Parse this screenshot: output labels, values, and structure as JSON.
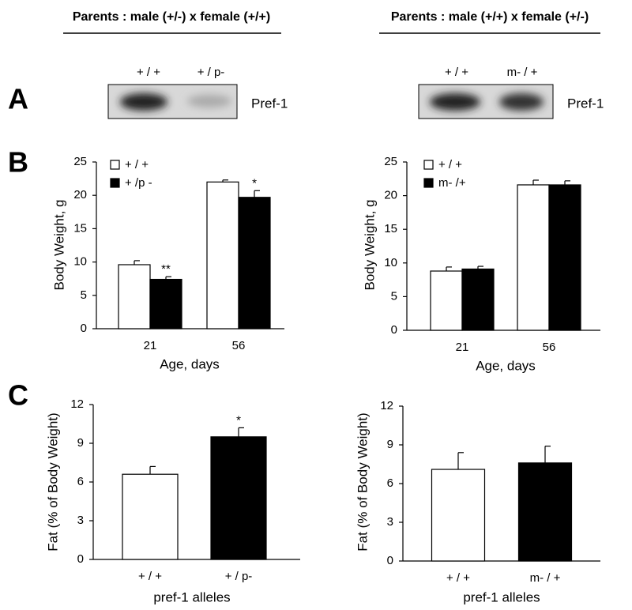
{
  "headers": [
    "Parents : male (+/-) x female (+/+)",
    "Parents : male (+/+) x female (+/-)"
  ],
  "panel_letters": [
    "A",
    "B",
    "C"
  ],
  "blots": [
    {
      "lanes": [
        "+ / +",
        "+ / p-"
      ],
      "label": "Pref-1"
    },
    {
      "lanes": [
        "+ / +",
        "m- / +"
      ],
      "label": "Pref-1"
    }
  ],
  "chart_data": [
    {
      "type": "bar",
      "categories": [
        "21",
        "56"
      ],
      "x_label": "Age, days",
      "y_label": "Body Weight, g",
      "ylim": [
        0,
        25
      ],
      "yticks": [
        0,
        5,
        10,
        15,
        20,
        25
      ],
      "series": [
        {
          "name": "+ / +",
          "color": "#ffffff",
          "values": [
            9.6,
            22.0
          ],
          "errors": [
            0.6,
            0.3
          ],
          "significance": [
            null,
            null
          ]
        },
        {
          "name": "+ /p -",
          "color": "#000000",
          "values": [
            7.4,
            19.7
          ],
          "errors": [
            0.4,
            1.0
          ],
          "significance": [
            "**",
            "*"
          ]
        }
      ]
    },
    {
      "type": "bar",
      "categories": [
        "21",
        "56"
      ],
      "x_label": "Age, days",
      "y_label": "Body Weight, g",
      "ylim": [
        0,
        25
      ],
      "yticks": [
        0,
        5,
        10,
        15,
        20,
        25
      ],
      "series": [
        {
          "name": "+ / +",
          "color": "#ffffff",
          "values": [
            8.8,
            21.6
          ],
          "errors": [
            0.6,
            0.7
          ],
          "significance": [
            null,
            null
          ]
        },
        {
          "name": "m- /+",
          "color": "#000000",
          "values": [
            9.1,
            21.6
          ],
          "errors": [
            0.4,
            0.6
          ],
          "significance": [
            null,
            null
          ]
        }
      ]
    },
    {
      "type": "bar",
      "categories": [
        "+ / +",
        "+ / p-"
      ],
      "x_label": "pref-1 alleles",
      "y_label": "Fat (% of Body Weight)",
      "ylim": [
        0,
        12
      ],
      "yticks": [
        0,
        3,
        6,
        9,
        12
      ],
      "values": [
        6.6,
        9.5
      ],
      "errors": [
        0.6,
        0.7
      ],
      "colors": [
        "#ffffff",
        "#000000"
      ],
      "significance": [
        null,
        "*"
      ]
    },
    {
      "type": "bar",
      "categories": [
        "+ / +",
        "m- / +"
      ],
      "x_label": "pref-1 alleles",
      "y_label": "Fat (% of Body Weight)",
      "ylim": [
        0,
        12
      ],
      "yticks": [
        0,
        3,
        6,
        9,
        12
      ],
      "values": [
        7.1,
        7.6
      ],
      "errors": [
        1.3,
        1.3
      ],
      "colors": [
        "#ffffff",
        "#000000"
      ],
      "significance": [
        null,
        null
      ]
    }
  ]
}
